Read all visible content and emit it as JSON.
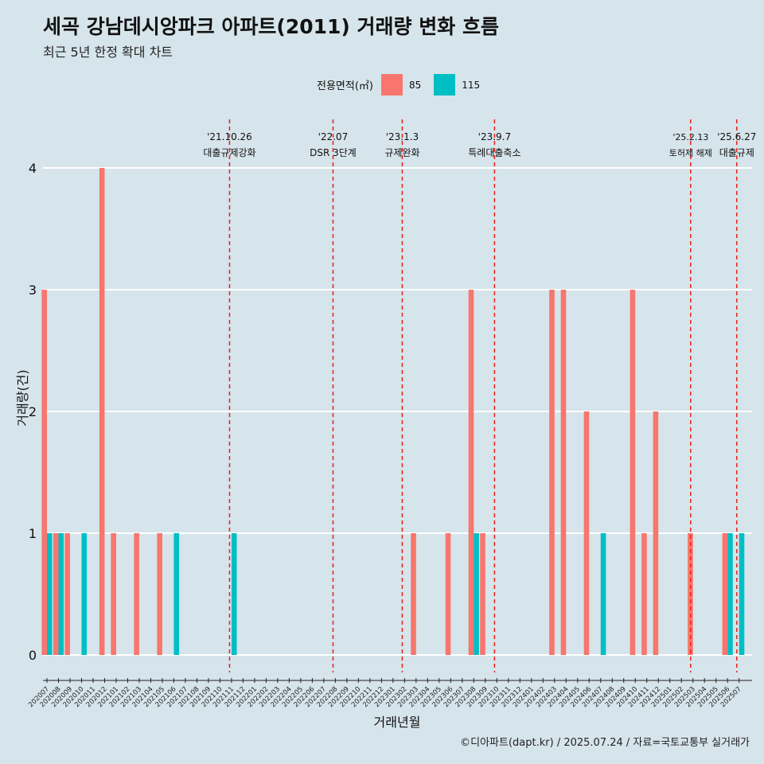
{
  "title": "세곡 강남데시앙파크 아파트(2011) 거래량 변화 흐름",
  "subtitle": "최근 5년 한정 확대 차트",
  "caption": "©디아파트(dapt.kr) / 2025.07.24 / 자료=국토교통부 실거래가",
  "colors": {
    "s85": "#f8766d",
    "s115": "#00bfc4",
    "vline": "#e8201a",
    "background": "#d6e4eb",
    "grid": "#ffffff"
  },
  "chart_data": {
    "type": "bar",
    "xlabel": "거래년월",
    "ylabel": "거래량(건)",
    "ylim": [
      0,
      4
    ],
    "yticks": [
      0,
      1,
      2,
      3,
      4
    ],
    "legend_title": "전용면적(㎡)",
    "legend_position": "top",
    "categories": [
      "202007",
      "202008",
      "202009",
      "202010",
      "202011",
      "202012",
      "202101",
      "202102",
      "202103",
      "202104",
      "202105",
      "202106",
      "202107",
      "202108",
      "202109",
      "202110",
      "202111",
      "202112",
      "202201",
      "202202",
      "202203",
      "202204",
      "202205",
      "202206",
      "202207",
      "202208",
      "202209",
      "202210",
      "202211",
      "202212",
      "202301",
      "202302",
      "202303",
      "202304",
      "202305",
      "202306",
      "202307",
      "202308",
      "202309",
      "202310",
      "202311",
      "202312",
      "202401",
      "202402",
      "202403",
      "202404",
      "202405",
      "202406",
      "202407",
      "202408",
      "202409",
      "202410",
      "202411",
      "202412",
      "202501",
      "202502",
      "202503",
      "202504",
      "202505",
      "202506",
      "202507"
    ],
    "series": [
      {
        "name": "85",
        "values": [
          3,
          1,
          1,
          0,
          0,
          4,
          1,
          0,
          1,
          0,
          1,
          0,
          0,
          0,
          0,
          0,
          0,
          0,
          0,
          0,
          0,
          0,
          0,
          0,
          0,
          0,
          0,
          0,
          0,
          0,
          0,
          0,
          1,
          0,
          0,
          1,
          0,
          3,
          1,
          0,
          0,
          0,
          0,
          0,
          3,
          3,
          0,
          2,
          0,
          0,
          0,
          3,
          1,
          2,
          0,
          0,
          1,
          0,
          0,
          1,
          0
        ]
      },
      {
        "name": "115",
        "values": [
          1,
          1,
          0,
          1,
          0,
          0,
          0,
          0,
          0,
          0,
          0,
          1,
          0,
          0,
          0,
          0,
          1,
          0,
          0,
          0,
          0,
          0,
          0,
          0,
          0,
          0,
          0,
          0,
          0,
          0,
          0,
          0,
          0,
          0,
          0,
          0,
          0,
          1,
          0,
          0,
          0,
          0,
          0,
          0,
          0,
          0,
          0,
          0,
          1,
          0,
          0,
          0,
          0,
          0,
          0,
          0,
          0,
          0,
          0,
          1,
          1
        ]
      }
    ],
    "annotations": [
      {
        "date": "'21.10.26",
        "label": "대출규제강화",
        "x": 15.83
      },
      {
        "date": "'22.07",
        "label": "DSR 3단계",
        "x": 24.8
      },
      {
        "date": "'23.1.3",
        "label": "규제완화",
        "x": 30.8
      },
      {
        "date": "'23.9.7",
        "label": "특례대출축소",
        "x": 38.8
      },
      {
        "date": "'25.2.13",
        "label": "토허제 해제",
        "x": 55.8
      },
      {
        "date": "'25.6.27",
        "label": "대출규제",
        "x": 59.8
      }
    ]
  }
}
